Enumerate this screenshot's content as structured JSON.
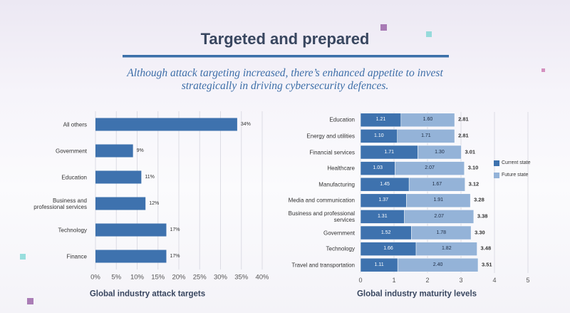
{
  "header": {
    "title": "Targeted and prepared",
    "subtitle": "Although attack targeting increased, there’s enhanced appetite to invest strategically in driving cybersecurity defences."
  },
  "chart_data": [
    {
      "type": "hbar",
      "title": "Global industry attack targets",
      "categories": [
        "All others",
        "Government",
        "Education",
        "Business and professional services",
        "Technology",
        "Finance"
      ],
      "values": [
        34,
        9,
        11,
        12,
        17,
        17
      ],
      "value_labels": [
        "34%",
        "9%",
        "11%",
        "12%",
        "17%",
        "17%"
      ],
      "color": "#3e72ae",
      "xlim": [
        0,
        40
      ],
      "xticks": [
        {
          "value": 0,
          "label": "0%"
        },
        {
          "value": 5,
          "label": "5%"
        },
        {
          "value": 10,
          "label": "10%"
        },
        {
          "value": 15,
          "label": "15%"
        },
        {
          "value": 20,
          "label": "20%"
        },
        {
          "value": 25,
          "label": "25%"
        },
        {
          "value": 30,
          "label": "30%"
        },
        {
          "value": 35,
          "label": "35%"
        },
        {
          "value": 40,
          "label": "40%"
        }
      ],
      "grid": true
    },
    {
      "type": "stacked-hbar",
      "title": "Global industry maturity levels",
      "categories": [
        "Education",
        "Energy and utilities",
        "Financial services",
        "Healthcare",
        "Manufacturing",
        "Media and communication",
        "Business and professional services",
        "Government",
        "Technology",
        "Travel and transportation"
      ],
      "series": [
        {
          "name": "Current state",
          "color": "#3e72ae",
          "values": [
            1.21,
            1.1,
            1.71,
            1.03,
            1.45,
            1.37,
            1.31,
            1.52,
            1.66,
            1.11
          ],
          "value_labels": [
            "1.21",
            "1.10",
            "1.71",
            "1.03",
            "1.45",
            "1.37",
            "1.31",
            "1.52",
            "1.66",
            "1.11"
          ]
        },
        {
          "name": "Future state",
          "color": "#94b3d8",
          "values": [
            1.6,
            1.71,
            1.3,
            2.07,
            1.67,
            1.91,
            2.07,
            1.78,
            1.82,
            2.4
          ],
          "value_labels": [
            "1.60",
            "1.71",
            "1.30",
            "2.07",
            "1.67",
            "1.91",
            "2.07",
            "1.78",
            "1.82",
            "2.40"
          ]
        }
      ],
      "total_labels": [
        "2.81",
        "2.81",
        "3.01",
        "3.10",
        "3.12",
        "3.28",
        "3.38",
        "3.30",
        "3.48",
        "3.51"
      ],
      "xlim": [
        0,
        5
      ],
      "xticks": [
        0,
        1,
        2,
        3,
        4,
        5
      ],
      "grid": true,
      "legend": "right"
    }
  ]
}
